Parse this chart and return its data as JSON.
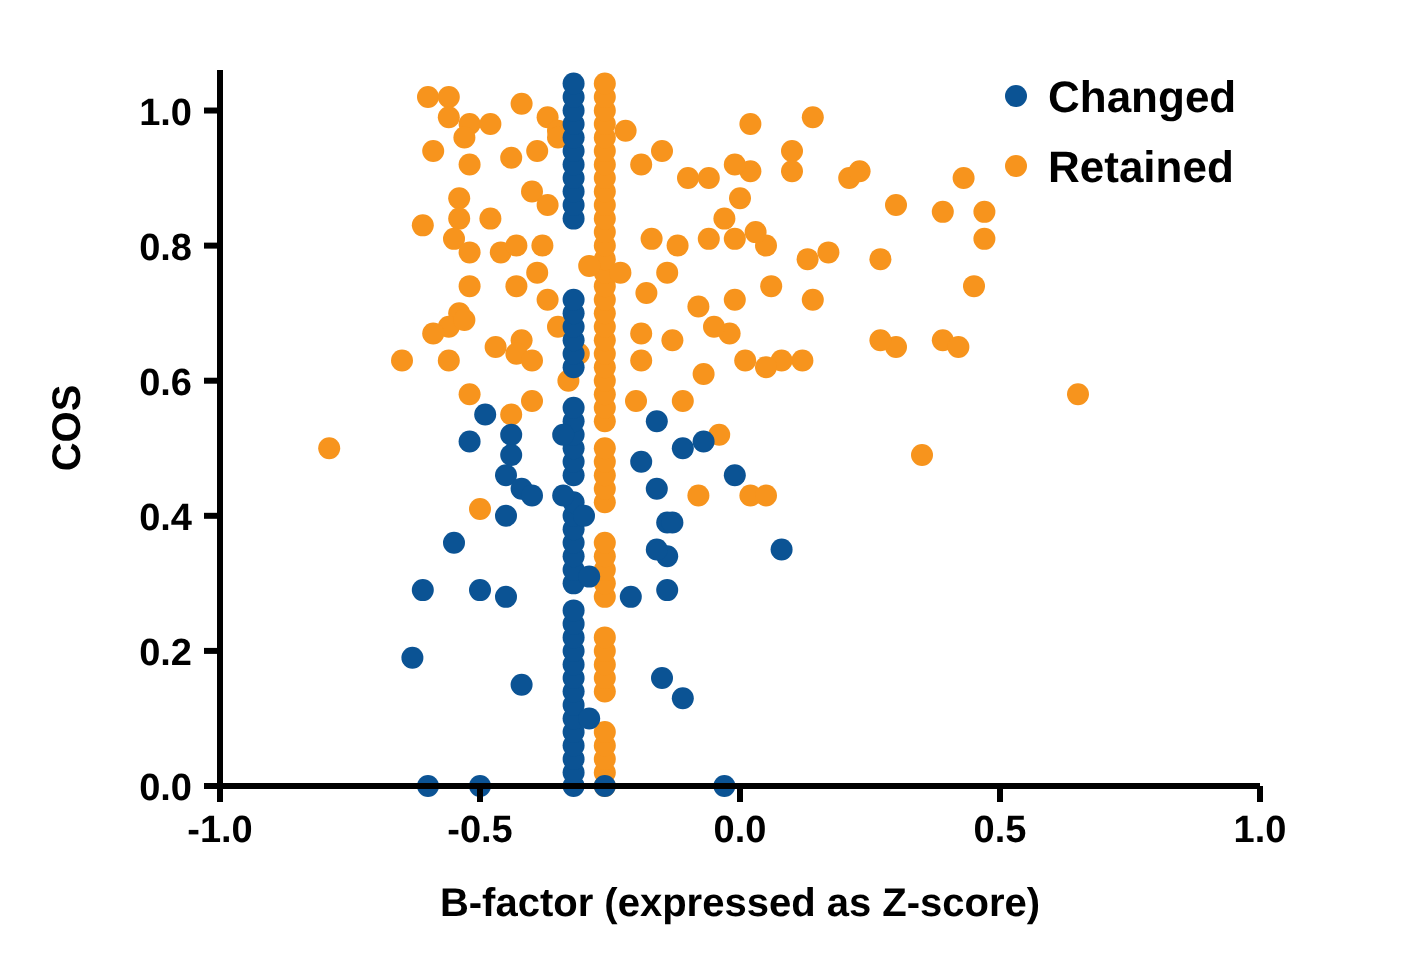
{
  "chart_data": {
    "type": "scatter",
    "xlabel": "B-factor (expressed as Z-score)",
    "ylabel": "COS",
    "xlim": [
      -1,
      1
    ],
    "ylim": [
      0,
      1.06
    ],
    "xticks": [
      {
        "value": -1,
        "label": "-1.0"
      },
      {
        "value": -0.5,
        "label": "-0.5"
      },
      {
        "value": 0,
        "label": "0.0"
      },
      {
        "value": 0.5,
        "label": "0.5"
      },
      {
        "value": 1,
        "label": "1.0"
      }
    ],
    "yticks": [
      {
        "value": 0,
        "label": "0.0"
      },
      {
        "value": 0.2,
        "label": "0.2"
      },
      {
        "value": 0.4,
        "label": "0.4"
      },
      {
        "value": 0.6,
        "label": "0.6"
      },
      {
        "value": 0.8,
        "label": "0.8"
      },
      {
        "value": 1,
        "label": "1.0"
      }
    ],
    "legend": "top right",
    "marker": "circle",
    "grid": false,
    "series": [
      {
        "name": "Retained",
        "color": "#f7941d",
        "x": [
          -0.26,
          -0.26,
          -0.26,
          -0.26,
          -0.26,
          -0.26,
          -0.26,
          -0.26,
          -0.26,
          -0.26,
          -0.26,
          -0.26,
          -0.26,
          -0.26,
          -0.26,
          -0.26,
          -0.26,
          -0.26,
          -0.26,
          -0.26,
          -0.26,
          -0.26,
          -0.26,
          -0.26,
          -0.26,
          -0.26,
          -0.26,
          -0.26,
          -0.26,
          -0.26,
          -0.26,
          -0.26,
          -0.26,
          -0.26,
          -0.26,
          -0.26,
          -0.26,
          -0.26,
          -0.26,
          -0.26,
          -0.26,
          -0.26,
          -0.26,
          -0.26,
          -0.26,
          -0.26,
          -0.79,
          -0.5,
          0.02,
          0.05,
          -0.08,
          0.65,
          0.35,
          0.3,
          0.27,
          0.02,
          0.14,
          0.1,
          0.1,
          0.21,
          0.23,
          0.3,
          0.39,
          0.43,
          0.47,
          0.47,
          0.45,
          0.39,
          0.42,
          0.27,
          0.17,
          0.13,
          0.06,
          0.14,
          -0.01,
          0.12,
          0.08,
          0.05,
          0.01,
          -0.07,
          -0.02,
          -0.08,
          -0.05,
          0.05,
          0.03,
          -0.01,
          -0.06,
          0.0,
          0.02,
          -0.01,
          -0.06,
          -0.03,
          -0.12,
          -0.15,
          -0.19,
          -0.1,
          -0.17,
          -0.14,
          -0.18,
          -0.13,
          -0.19,
          -0.19,
          -0.11,
          -0.2,
          -0.04,
          -0.22,
          -0.23,
          -0.6,
          -0.56,
          -0.56,
          -0.52,
          -0.48,
          -0.42,
          -0.37,
          -0.35,
          -0.59,
          -0.53,
          -0.52,
          -0.44,
          -0.39,
          -0.35,
          -0.4,
          -0.37,
          -0.54,
          -0.54,
          -0.48,
          -0.61,
          -0.55,
          -0.52,
          -0.46,
          -0.43,
          -0.38,
          -0.52,
          -0.43,
          -0.39,
          -0.37,
          -0.54,
          -0.56,
          -0.53,
          -0.59,
          -0.65,
          -0.56,
          -0.47,
          -0.42,
          -0.43,
          -0.4,
          -0.35,
          -0.31,
          -0.33,
          -0.52,
          -0.44,
          -0.4,
          -0.29
        ],
        "values": [
          0,
          0.02,
          0.04,
          0.06,
          0.08,
          0.14,
          0.16,
          0.18,
          0.2,
          0.22,
          0.28,
          0.3,
          0.32,
          0.34,
          0.36,
          0.42,
          0.44,
          0.46,
          0.48,
          0.5,
          0.54,
          0.56,
          0.58,
          0.6,
          0.62,
          0.64,
          0.66,
          0.68,
          0.7,
          0.72,
          0.74,
          0.76,
          0.78,
          0.8,
          0.82,
          0.84,
          0.86,
          0.88,
          0.9,
          0.92,
          0.94,
          0.96,
          0.98,
          1.0,
          1.02,
          1.04,
          0.5,
          0.41,
          0.43,
          0.43,
          0.43,
          0.58,
          0.49,
          0.65,
          0.66,
          0.98,
          0.99,
          0.94,
          0.91,
          0.9,
          0.91,
          0.86,
          0.85,
          0.9,
          0.85,
          0.81,
          0.74,
          0.66,
          0.65,
          0.78,
          0.79,
          0.78,
          0.74,
          0.72,
          0.72,
          0.63,
          0.63,
          0.62,
          0.63,
          0.61,
          0.67,
          0.71,
          0.68,
          0.8,
          0.82,
          0.81,
          0.81,
          0.87,
          0.91,
          0.92,
          0.9,
          0.84,
          0.8,
          0.94,
          0.92,
          0.9,
          0.81,
          0.76,
          0.73,
          0.66,
          0.63,
          0.67,
          0.57,
          0.57,
          0.52,
          0.97,
          0.76,
          1.02,
          1.02,
          0.99,
          0.98,
          0.98,
          1.01,
          0.99,
          0.97,
          0.94,
          0.96,
          0.92,
          0.93,
          0.94,
          0.96,
          0.88,
          0.86,
          0.87,
          0.84,
          0.84,
          0.83,
          0.81,
          0.79,
          0.79,
          0.8,
          0.8,
          0.74,
          0.74,
          0.76,
          0.72,
          0.7,
          0.68,
          0.69,
          0.67,
          0.63,
          0.63,
          0.65,
          0.66,
          0.64,
          0.63,
          0.68,
          0.64,
          0.6,
          0.58,
          0.55,
          0.57,
          0.77
        ]
      },
      {
        "name": "Changed",
        "color": "#0b5394",
        "x": [
          -0.32,
          -0.32,
          -0.32,
          -0.32,
          -0.32,
          -0.32,
          -0.32,
          -0.32,
          -0.32,
          -0.32,
          -0.32,
          -0.32,
          -0.32,
          -0.32,
          -0.32,
          -0.32,
          -0.32,
          -0.32,
          -0.32,
          -0.32,
          -0.32,
          -0.32,
          -0.32,
          -0.32,
          -0.32,
          -0.32,
          -0.32,
          -0.32,
          -0.32,
          -0.32,
          -0.32,
          -0.32,
          -0.32,
          -0.32,
          -0.32,
          -0.32,
          -0.32,
          -0.32,
          -0.32,
          -0.32,
          -0.32,
          -0.32,
          -0.32,
          -0.32,
          -0.6,
          -0.5,
          -0.03,
          -0.63,
          -0.61,
          -0.5,
          -0.45,
          -0.55,
          -0.42,
          -0.11,
          -0.15,
          0.08,
          -0.21,
          -0.14,
          -0.14,
          -0.16,
          -0.14,
          -0.13,
          -0.01,
          -0.16,
          -0.19,
          -0.11,
          -0.16,
          -0.07,
          -0.49,
          -0.52,
          -0.44,
          -0.44,
          -0.45,
          -0.42,
          -0.4,
          -0.45,
          -0.34,
          -0.34,
          -0.3,
          -0.29,
          -0.29,
          -0.26
        ],
        "values": [
          0,
          0.02,
          0.04,
          0.06,
          0.08,
          0.1,
          0.12,
          0.14,
          0.16,
          0.18,
          0.2,
          0.22,
          0.24,
          0.26,
          0.3,
          0.32,
          0.34,
          0.36,
          0.38,
          0.4,
          0.42,
          0.46,
          0.48,
          0.5,
          0.52,
          0.54,
          0.56,
          0.62,
          0.64,
          0.66,
          0.68,
          0.7,
          0.72,
          0.84,
          0.86,
          0.88,
          0.9,
          0.92,
          0.94,
          0.96,
          0.98,
          1.0,
          1.02,
          1.04,
          0,
          0,
          0,
          0.19,
          0.29,
          0.29,
          0.28,
          0.36,
          0.15,
          0.13,
          0.16,
          0.35,
          0.28,
          0.29,
          0.34,
          0.35,
          0.39,
          0.39,
          0.46,
          0.44,
          0.48,
          0.5,
          0.54,
          0.51,
          0.55,
          0.51,
          0.52,
          0.49,
          0.46,
          0.44,
          0.43,
          0.4,
          0.52,
          0.43,
          0.4,
          0.31,
          0.1,
          0
        ]
      }
    ]
  }
}
